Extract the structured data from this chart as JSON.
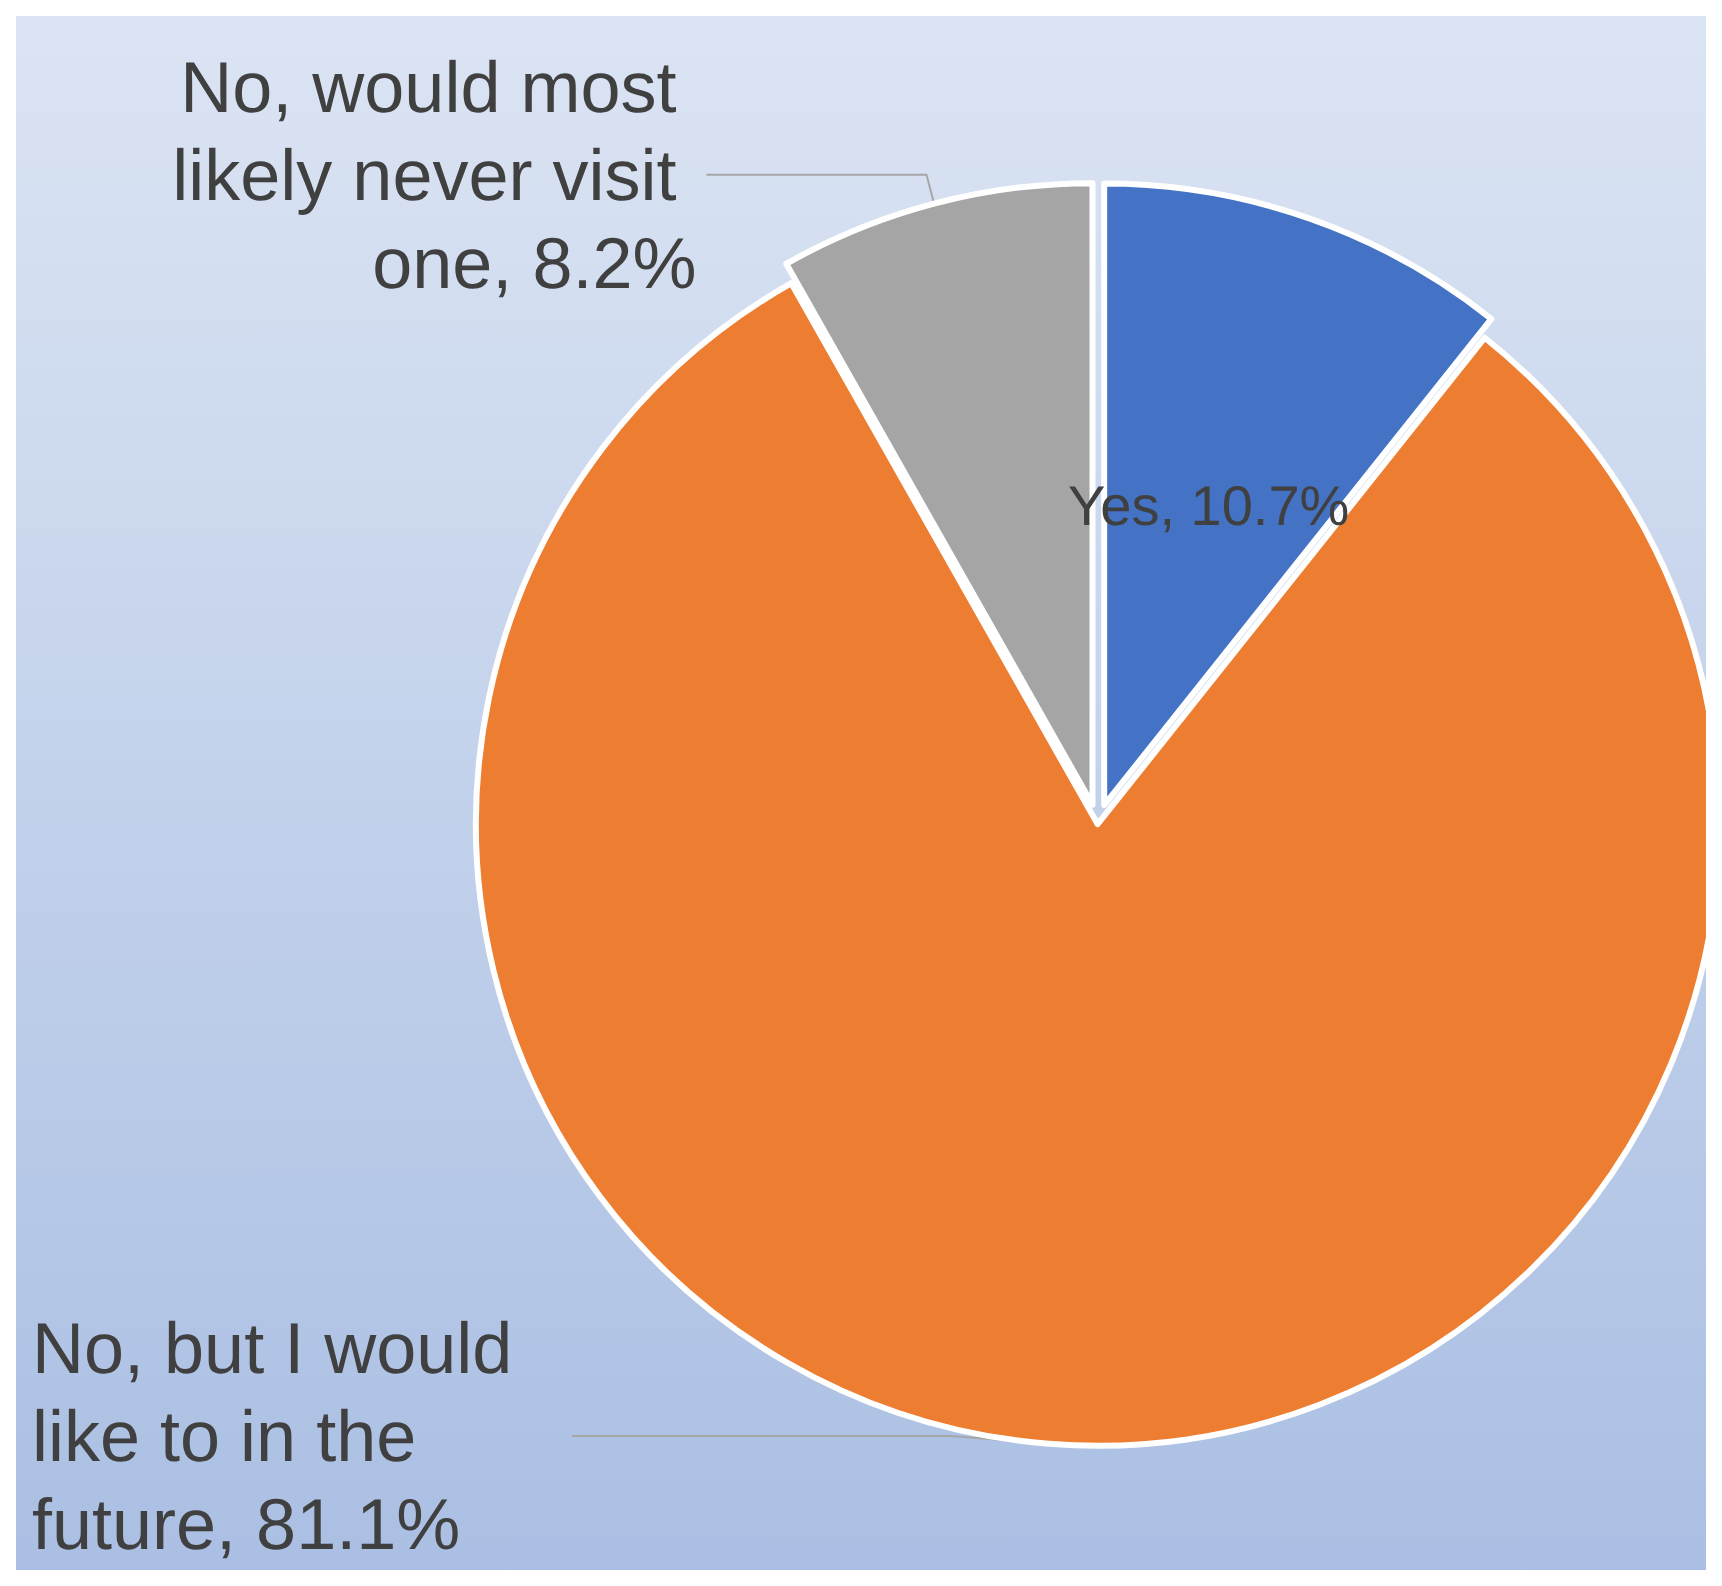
{
  "chart_data": {
    "type": "pie",
    "categories": [
      "Yes",
      "No, but I would like to in the future",
      "No, would most likely never visit one"
    ],
    "values": [
      10.7,
      81.1,
      8.2
    ],
    "value_labels": [
      "10.7%",
      "81.1%",
      "8.2%"
    ],
    "colors": [
      "#4472c4",
      "#ed7d31",
      "#a5a5a5"
    ],
    "legend": false
  }
}
